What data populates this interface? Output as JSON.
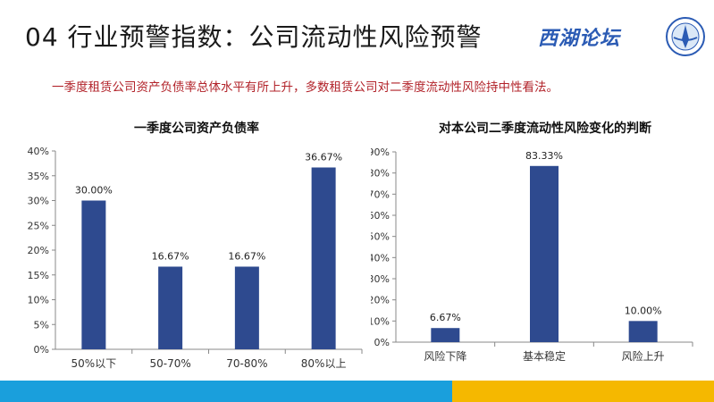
{
  "page": {
    "title": "04 行业预警指数：公司流动性风险预警",
    "subtitle": "一季度租赁公司资产负债率总体水平有所上升，多数租赁公司对二季度流动性风险持中性看法。",
    "logo_text": "西湖论坛"
  },
  "colors": {
    "bar": "#2e4a8f",
    "title_red": "#b2232a",
    "footer_blue": "#1a9fdc",
    "footer_yellow": "#f5b800"
  },
  "chart_data": [
    {
      "type": "bar",
      "title": "一季度公司资产负债率",
      "categories": [
        "50%以下",
        "50-70%",
        "70-80%",
        "80%以上"
      ],
      "values": [
        30.0,
        16.67,
        16.67,
        36.67
      ],
      "value_labels": [
        "30.00%",
        "16.67%",
        "16.67%",
        "36.67%"
      ],
      "ylim": [
        0,
        40
      ],
      "yticks": [
        "0%",
        "5%",
        "10%",
        "15%",
        "20%",
        "25%",
        "30%",
        "35%",
        "40%"
      ],
      "grid": false,
      "xlabel": "",
      "ylabel": ""
    },
    {
      "type": "bar",
      "title": "对本公司二季度流动性风险变化的判断",
      "categories": [
        "风险下降",
        "基本稳定",
        "风险上升"
      ],
      "values": [
        6.67,
        83.33,
        10.0
      ],
      "value_labels": [
        "6.67%",
        "83.33%",
        "10.00%"
      ],
      "ylim": [
        0,
        90
      ],
      "yticks": [
        "0%",
        "10%",
        "20%",
        "30%",
        "40%",
        "50%",
        "60%",
        "70%",
        "80%",
        "90%"
      ],
      "grid": false,
      "xlabel": "",
      "ylabel": ""
    }
  ]
}
